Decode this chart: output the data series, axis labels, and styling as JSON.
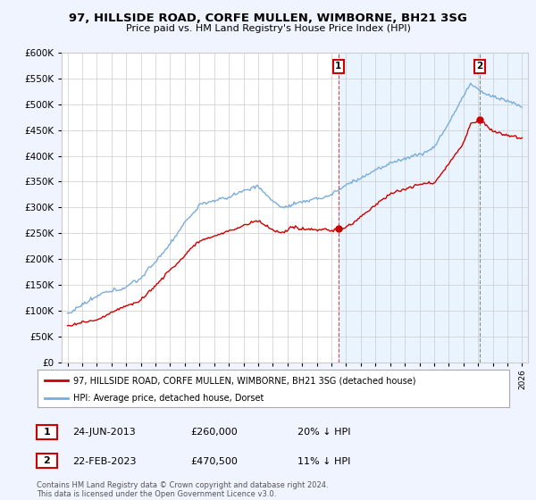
{
  "title": "97, HILLSIDE ROAD, CORFE MULLEN, WIMBORNE, BH21 3SG",
  "subtitle": "Price paid vs. HM Land Registry's House Price Index (HPI)",
  "red_label": "97, HILLSIDE ROAD, CORFE MULLEN, WIMBORNE, BH21 3SG (detached house)",
  "blue_label": "HPI: Average price, detached house, Dorset",
  "annotation1_date": "24-JUN-2013",
  "annotation1_price": "£260,000",
  "annotation1_hpi": "20% ↓ HPI",
  "annotation2_date": "22-FEB-2023",
  "annotation2_price": "£470,500",
  "annotation2_hpi": "11% ↓ HPI",
  "footer": "Contains HM Land Registry data © Crown copyright and database right 2024.\nThis data is licensed under the Open Government Licence v3.0.",
  "red_color": "#cc0000",
  "blue_color": "#7aaddc",
  "background_color": "#f0f4ff",
  "plot_bg_color": "#ffffff",
  "shade_color": "#ddeeff",
  "grid_color": "#cccccc",
  "ylim": [
    0,
    600000
  ],
  "ytick_vals": [
    0,
    50000,
    100000,
    150000,
    200000,
    250000,
    300000,
    350000,
    400000,
    450000,
    500000,
    550000,
    600000
  ],
  "sale1_x": 2013.47,
  "sale1_y": 260000,
  "sale2_x": 2023.12,
  "sale2_y": 470500,
  "annot_box_color": "#cc0000",
  "xlim_min": 1994.6,
  "xlim_max": 2026.4
}
